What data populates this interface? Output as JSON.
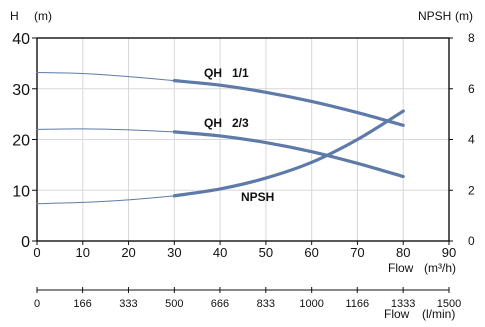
{
  "chart_data": {
    "type": "line",
    "left_axis": {
      "title": "H",
      "unit": "(m)",
      "ylim": [
        0,
        40
      ],
      "ticks": [
        0,
        10,
        20,
        30,
        40
      ]
    },
    "right_axis": {
      "title": "NPSH",
      "unit": "(m)",
      "ylim": [
        0,
        8
      ],
      "ticks": [
        0,
        2,
        4,
        6,
        8
      ]
    },
    "x_axis_primary": {
      "label": "Flow",
      "unit": "(m³/h)",
      "xlim": [
        0,
        90
      ],
      "ticks": [
        0,
        10,
        20,
        30,
        40,
        50,
        60,
        70,
        80,
        90
      ]
    },
    "x_axis_secondary": {
      "label": "Flow",
      "unit": "(l/min)",
      "ticks": [
        {
          "label": "0",
          "value": 0
        },
        {
          "label": "166",
          "value": 166
        },
        {
          "label": "333",
          "value": 333
        },
        {
          "label": "500",
          "value": 500
        },
        {
          "label": "666",
          "value": 666
        },
        {
          "label": "833",
          "value": 833
        },
        {
          "label": "1000",
          "value": 1000
        },
        {
          "label": "1166",
          "value": 1166
        },
        {
          "label": "1333",
          "value": 1333
        },
        {
          "label": "1500",
          "value": 1500
        }
      ]
    },
    "grid": true,
    "series": [
      {
        "name": "QH   1/1",
        "axis": "left",
        "color": "#5e7aa8",
        "thin": [
          [
            0,
            33.2
          ],
          [
            10,
            33.0
          ],
          [
            20,
            32.4
          ],
          [
            30,
            31.6
          ]
        ],
        "thick": [
          [
            30,
            31.6
          ],
          [
            40,
            30.7
          ],
          [
            50,
            29.3
          ],
          [
            60,
            27.5
          ],
          [
            70,
            25.3
          ],
          [
            80,
            22.8
          ]
        ]
      },
      {
        "name": "QH   2/3",
        "axis": "left",
        "color": "#5e7aa8",
        "thin": [
          [
            0,
            22.0
          ],
          [
            10,
            22.1
          ],
          [
            20,
            21.9
          ],
          [
            30,
            21.5
          ]
        ],
        "thick": [
          [
            30,
            21.5
          ],
          [
            40,
            20.7
          ],
          [
            50,
            19.4
          ],
          [
            60,
            17.6
          ],
          [
            70,
            15.3
          ],
          [
            80,
            12.7
          ]
        ]
      },
      {
        "name": "NPSH",
        "axis": "right",
        "color": "#5e7aa8",
        "thin": [
          [
            0,
            1.47
          ],
          [
            10,
            1.52
          ],
          [
            20,
            1.62
          ],
          [
            30,
            1.78
          ]
        ],
        "thick": [
          [
            30,
            1.78
          ],
          [
            40,
            2.05
          ],
          [
            50,
            2.48
          ],
          [
            60,
            3.1
          ],
          [
            70,
            4.0
          ],
          [
            80,
            5.12
          ]
        ]
      }
    ]
  }
}
